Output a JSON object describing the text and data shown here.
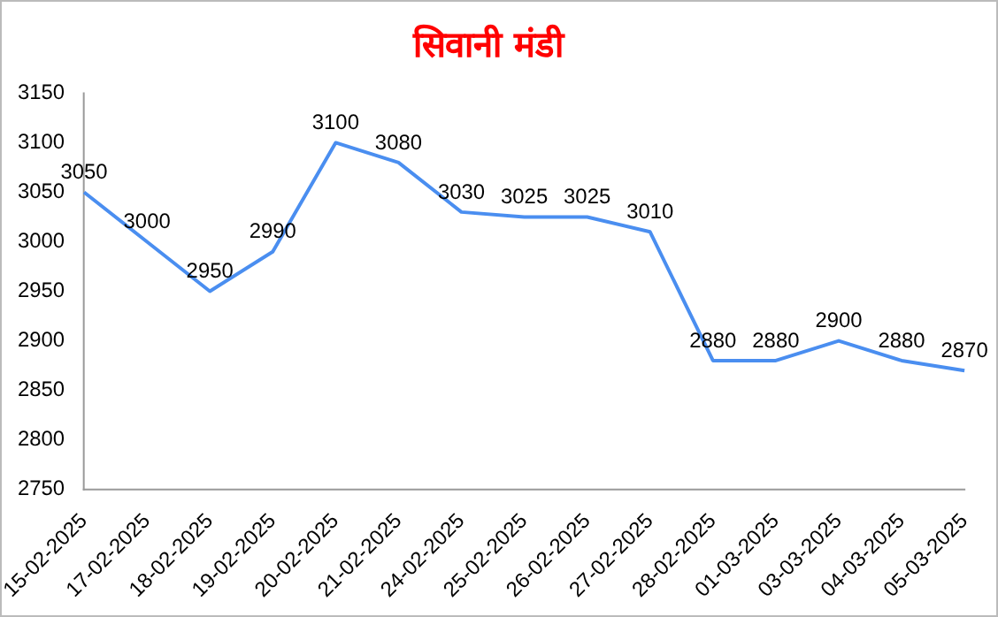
{
  "chart_data": {
    "type": "line",
    "title": "सिवानी मंडी",
    "categories": [
      "15-02-2025",
      "17-02-2025",
      "18-02-2025",
      "19-02-2025",
      "20-02-2025",
      "21-02-2025",
      "24-02-2025",
      "25-02-2025",
      "26-02-2025",
      "27-02-2025",
      "28-02-2025",
      "01-03-2025",
      "03-03-2025",
      "04-03-2025",
      "05-03-2025"
    ],
    "series": [
      {
        "color": "#4a8ef0",
        "values": [
          3050,
          3000,
          2950,
          2990,
          3100,
          3080,
          3030,
          3025,
          3025,
          3010,
          2880,
          2880,
          2900,
          2880,
          2870
        ]
      }
    ],
    "ylim": [
      2750,
      3150
    ],
    "yticks": [
      2750,
      2800,
      2850,
      2900,
      2950,
      3000,
      3050,
      3100,
      3150
    ],
    "grid": false,
    "legend": false,
    "marker": "none",
    "line_style": "solid",
    "data_labels": true
  }
}
